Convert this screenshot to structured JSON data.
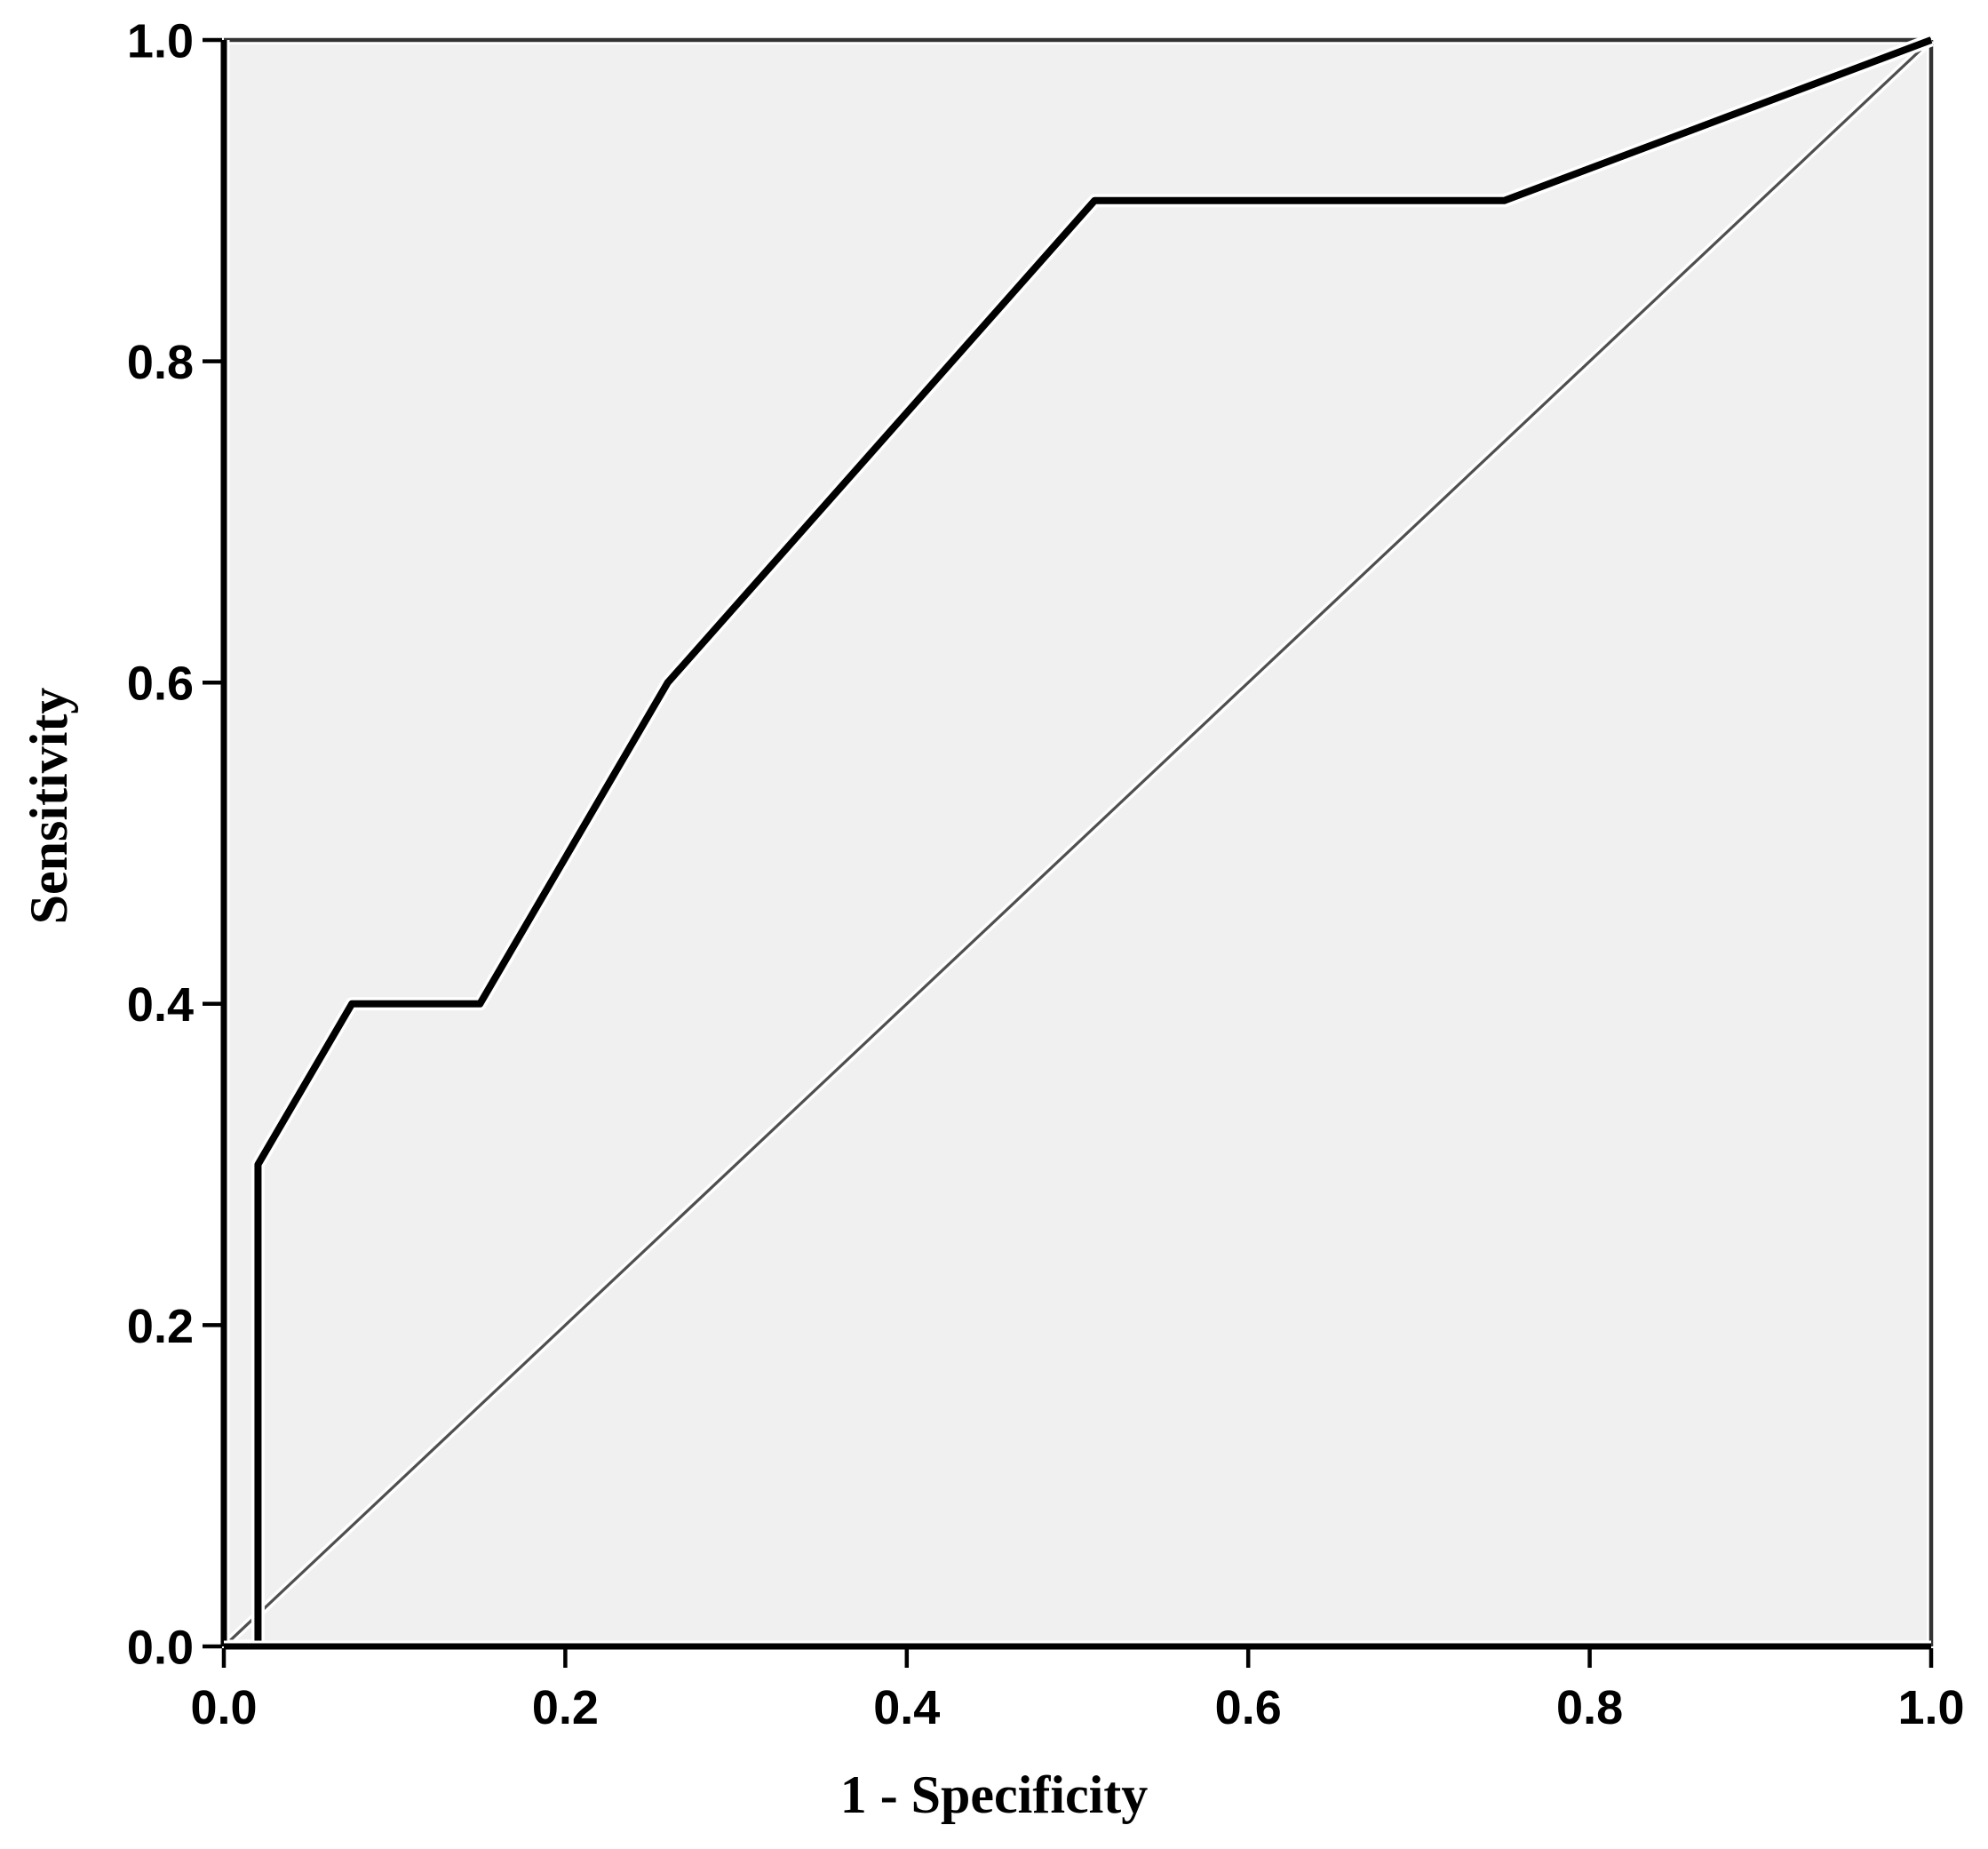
{
  "figure": {
    "kind": "roc-curve-plot"
  },
  "chart_data": {
    "type": "line",
    "title": "",
    "xlabel": "1 - Specificity",
    "ylabel": "Sensitivity",
    "xlim": [
      0.0,
      1.0
    ],
    "ylim": [
      0.0,
      1.0
    ],
    "x_ticks": [
      "0.0",
      "0.2",
      "0.4",
      "0.6",
      "0.8",
      "1.0"
    ],
    "y_ticks": [
      "0.0",
      "0.2",
      "0.4",
      "0.6",
      "0.8",
      "1.0"
    ],
    "grid": false,
    "legend_position": "none",
    "plot_background": "#f0f0f0",
    "outer_background": "#ffffff",
    "axis_color": "#000000",
    "frame_color": "#333333",
    "series": [
      {
        "name": "ROC curve",
        "color": "#000000",
        "stroke_width": 8,
        "points": [
          [
            0.0,
            0.0
          ],
          [
            0.02,
            0.0
          ],
          [
            0.02,
            0.3
          ],
          [
            0.075,
            0.4
          ],
          [
            0.15,
            0.4
          ],
          [
            0.26,
            0.6
          ],
          [
            0.51,
            0.9
          ],
          [
            0.75,
            0.9
          ],
          [
            1.0,
            1.0
          ]
        ]
      },
      {
        "name": "Reference diagonal",
        "color": "#4f4f4f",
        "stroke_width": 3.2,
        "points": [
          [
            0.0,
            0.0
          ],
          [
            1.0,
            1.0
          ]
        ]
      }
    ]
  }
}
